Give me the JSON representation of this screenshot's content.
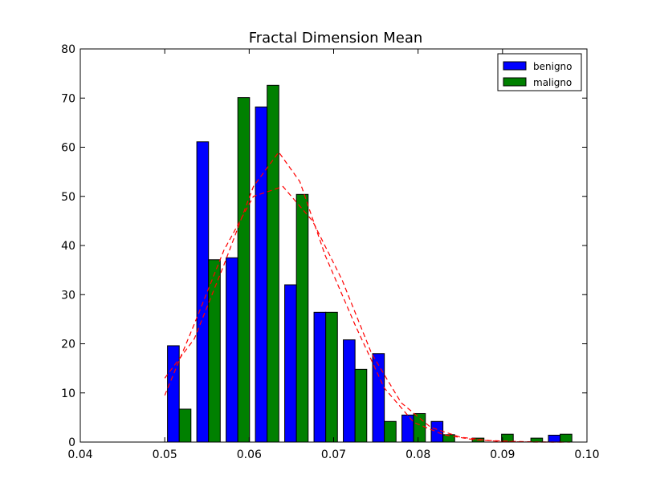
{
  "chart_data": {
    "type": "bar",
    "title": "Fractal Dimension Mean",
    "xlabel": "",
    "ylabel": "",
    "xlim": [
      0.04,
      0.1
    ],
    "ylim": [
      0,
      80
    ],
    "x_ticks": [
      "0.04",
      "0.05",
      "0.06",
      "0.07",
      "0.08",
      "0.09",
      "0.10"
    ],
    "y_ticks": [
      "0",
      "10",
      "20",
      "30",
      "40",
      "50",
      "60",
      "70",
      "80"
    ],
    "bin_edges": [
      0.04998,
      0.05345,
      0.05692,
      0.06039,
      0.06386,
      0.06733,
      0.0708,
      0.07427,
      0.07774,
      0.08121,
      0.08468,
      0.08815,
      0.09162,
      0.09509,
      0.09856
    ],
    "series": [
      {
        "name": "benigno",
        "color": "#0000ff",
        "values": [
          19.6,
          61.1,
          37.5,
          68.2,
          32.0,
          26.4,
          20.8,
          18.0,
          5.5,
          4.2,
          0.0,
          0.0,
          0.0,
          1.4
        ]
      },
      {
        "name": "maligno",
        "color": "#008000",
        "values": [
          6.7,
          37.1,
          70.1,
          72.6,
          50.4,
          26.4,
          14.8,
          4.2,
          5.8,
          1.5,
          0.8,
          1.6,
          0.8,
          1.6
        ]
      }
    ],
    "fit_curves": [
      {
        "style": "dashed",
        "color": "#ff0000",
        "x": [
          0.05,
          0.0535,
          0.057,
          0.0605,
          0.064,
          0.0675,
          0.071,
          0.0745,
          0.078,
          0.0815,
          0.085,
          0.0885,
          0.092,
          0.0955,
          0.098
        ],
        "y": [
          9.5,
          24,
          39,
          50,
          52,
          45,
          33,
          18,
          8,
          3,
          1,
          0.3,
          0.1,
          0.0,
          0.0
        ]
      },
      {
        "style": "dashed",
        "color": "#ff0000",
        "x": [
          0.05,
          0.0535,
          0.057,
          0.0605,
          0.0635,
          0.066,
          0.069,
          0.0725,
          0.076,
          0.0795,
          0.083,
          0.0865,
          0.09,
          0.0935,
          0.097
        ],
        "y": [
          13,
          21,
          36,
          52,
          59,
          53,
          38,
          24,
          11,
          4,
          1.5,
          0.5,
          0.1,
          0.0,
          0.0
        ]
      }
    ],
    "legend": {
      "position": "top-right",
      "entries": [
        "benigno",
        "maligno"
      ]
    },
    "grid": false
  }
}
